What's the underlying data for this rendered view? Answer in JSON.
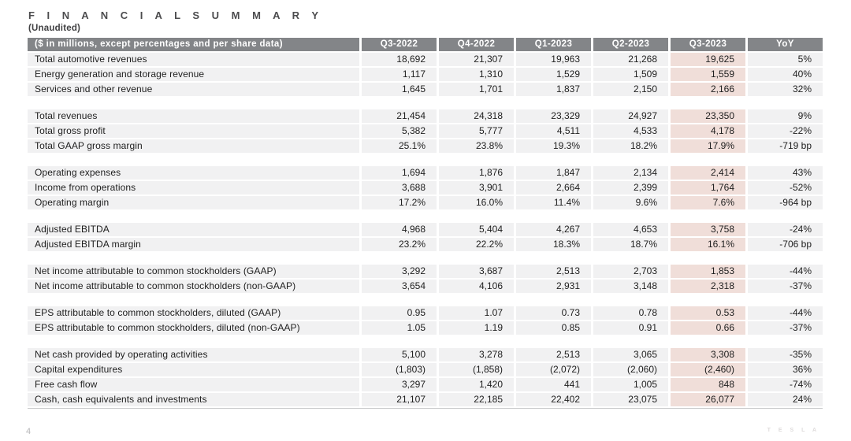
{
  "page": {
    "title": "F I N A N C I A L   S U M M A R Y",
    "subtitle": "(Unaudited)"
  },
  "footer": {
    "page_number": "4",
    "wordmark": "T E S L A"
  },
  "colors": {
    "header_bg": "#838588",
    "header_text": "#ffffff",
    "row_bg": "#f1f1f2",
    "highlight_bg": "#f0ded9",
    "title_text": "#4c4c4e"
  },
  "table": {
    "label_header": "($ in millions, except percentages and per share data)",
    "columns": [
      "Q3-2022",
      "Q4-2022",
      "Q1-2023",
      "Q2-2023",
      "Q3-2023",
      "YoY"
    ],
    "highlight_column": "Q3-2023",
    "groups": [
      [
        {
          "label": "Total automotive revenues",
          "values": [
            "18,692",
            "21,307",
            "19,963",
            "21,268",
            "19,625",
            "5%"
          ]
        },
        {
          "label": "Energy generation and storage revenue",
          "values": [
            "1,117",
            "1,310",
            "1,529",
            "1,509",
            "1,559",
            "40%"
          ]
        },
        {
          "label": "Services and other revenue",
          "values": [
            "1,645",
            "1,701",
            "1,837",
            "2,150",
            "2,166",
            "32%"
          ]
        }
      ],
      [
        {
          "label": "Total revenues",
          "values": [
            "21,454",
            "24,318",
            "23,329",
            "24,927",
            "23,350",
            "9%"
          ]
        },
        {
          "label": "Total gross profit",
          "values": [
            "5,382",
            "5,777",
            "4,511",
            "4,533",
            "4,178",
            "-22%"
          ]
        },
        {
          "label": "Total GAAP gross margin",
          "values": [
            "25.1%",
            "23.8%",
            "19.3%",
            "18.2%",
            "17.9%",
            "-719 bp"
          ]
        }
      ],
      [
        {
          "label": "Operating expenses",
          "values": [
            "1,694",
            "1,876",
            "1,847",
            "2,134",
            "2,414",
            "43%"
          ]
        },
        {
          "label": "Income from operations",
          "values": [
            "3,688",
            "3,901",
            "2,664",
            "2,399",
            "1,764",
            "-52%"
          ]
        },
        {
          "label": "Operating margin",
          "values": [
            "17.2%",
            "16.0%",
            "11.4%",
            "9.6%",
            "7.6%",
            "-964 bp"
          ]
        }
      ],
      [
        {
          "label": "Adjusted EBITDA",
          "values": [
            "4,968",
            "5,404",
            "4,267",
            "4,653",
            "3,758",
            "-24%"
          ]
        },
        {
          "label": "Adjusted EBITDA margin",
          "values": [
            "23.2%",
            "22.2%",
            "18.3%",
            "18.7%",
            "16.1%",
            "-706 bp"
          ]
        }
      ],
      [
        {
          "label": "Net income attributable to common stockholders (GAAP)",
          "values": [
            "3,292",
            "3,687",
            "2,513",
            "2,703",
            "1,853",
            "-44%"
          ]
        },
        {
          "label": "Net income attributable to common stockholders (non-GAAP)",
          "values": [
            "3,654",
            "4,106",
            "2,931",
            "3,148",
            "2,318",
            "-37%"
          ]
        }
      ],
      [
        {
          "label": "EPS attributable to common stockholders, diluted (GAAP)",
          "values": [
            "0.95",
            "1.07",
            "0.73",
            "0.78",
            "0.53",
            "-44%"
          ]
        },
        {
          "label": "EPS attributable to common stockholders, diluted (non-GAAP)",
          "values": [
            "1.05",
            "1.19",
            "0.85",
            "0.91",
            "0.66",
            "-37%"
          ]
        }
      ],
      [
        {
          "label": "Net cash provided by operating activities",
          "values": [
            "5,100",
            "3,278",
            "2,513",
            "3,065",
            "3,308",
            "-35%"
          ]
        },
        {
          "label": "Capital expenditures",
          "values": [
            "(1,803)",
            "(1,858)",
            "(2,072)",
            "(2,060)",
            "(2,460)",
            "36%"
          ]
        },
        {
          "label": "Free cash flow",
          "values": [
            "3,297",
            "1,420",
            "441",
            "1,005",
            "848",
            "-74%"
          ]
        },
        {
          "label": "Cash, cash equivalents and investments",
          "values": [
            "21,107",
            "22,185",
            "22,402",
            "23,075",
            "26,077",
            "24%"
          ]
        }
      ]
    ]
  }
}
